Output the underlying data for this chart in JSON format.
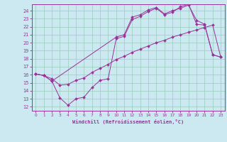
{
  "xlabel": "Windchill (Refroidissement éolien,°C)",
  "bg_color": "#cce8f0",
  "line_color": "#993399",
  "grid_color": "#99ccbb",
  "spine_color": "#993399",
  "xlim": [
    -0.5,
    23.5
  ],
  "ylim": [
    11.5,
    24.8
  ],
  "yticks": [
    12,
    13,
    14,
    15,
    16,
    17,
    18,
    19,
    20,
    21,
    22,
    23,
    24
  ],
  "xticks": [
    0,
    1,
    2,
    3,
    4,
    5,
    6,
    7,
    8,
    9,
    10,
    11,
    12,
    13,
    14,
    15,
    16,
    17,
    18,
    19,
    20,
    21,
    22,
    23
  ],
  "line1_x": [
    0,
    1,
    2,
    3,
    4,
    5,
    6,
    7,
    8,
    9,
    10,
    11,
    12,
    13,
    14,
    15,
    16,
    17,
    18,
    19,
    20,
    21,
    22,
    23
  ],
  "line1_y": [
    16.1,
    15.9,
    15.5,
    14.7,
    14.8,
    15.3,
    15.6,
    16.3,
    16.8,
    17.3,
    17.9,
    18.3,
    18.8,
    19.2,
    19.6,
    20.0,
    20.3,
    20.7,
    21.0,
    21.3,
    21.6,
    21.9,
    22.2,
    18.2
  ],
  "line2_x": [
    0,
    1,
    2,
    3,
    4,
    5,
    6,
    7,
    8,
    9,
    10,
    11,
    12,
    13,
    14,
    15,
    16,
    17,
    18,
    19,
    20,
    21,
    22,
    23
  ],
  "line2_y": [
    16.1,
    15.9,
    15.2,
    13.1,
    12.2,
    13.0,
    13.2,
    14.4,
    15.3,
    15.5,
    20.5,
    20.8,
    22.9,
    23.3,
    23.9,
    24.3,
    23.5,
    23.8,
    24.5,
    24.8,
    22.3,
    22.2,
    18.5,
    18.2
  ],
  "line3_x": [
    0,
    1,
    2,
    10,
    11,
    12,
    13,
    14,
    15,
    16,
    17,
    18,
    19,
    20,
    21,
    22,
    23
  ],
  "line3_y": [
    16.1,
    15.9,
    15.2,
    20.7,
    21.0,
    23.2,
    23.5,
    24.1,
    24.4,
    23.6,
    24.0,
    24.3,
    24.7,
    22.8,
    22.3,
    18.5,
    18.2
  ]
}
